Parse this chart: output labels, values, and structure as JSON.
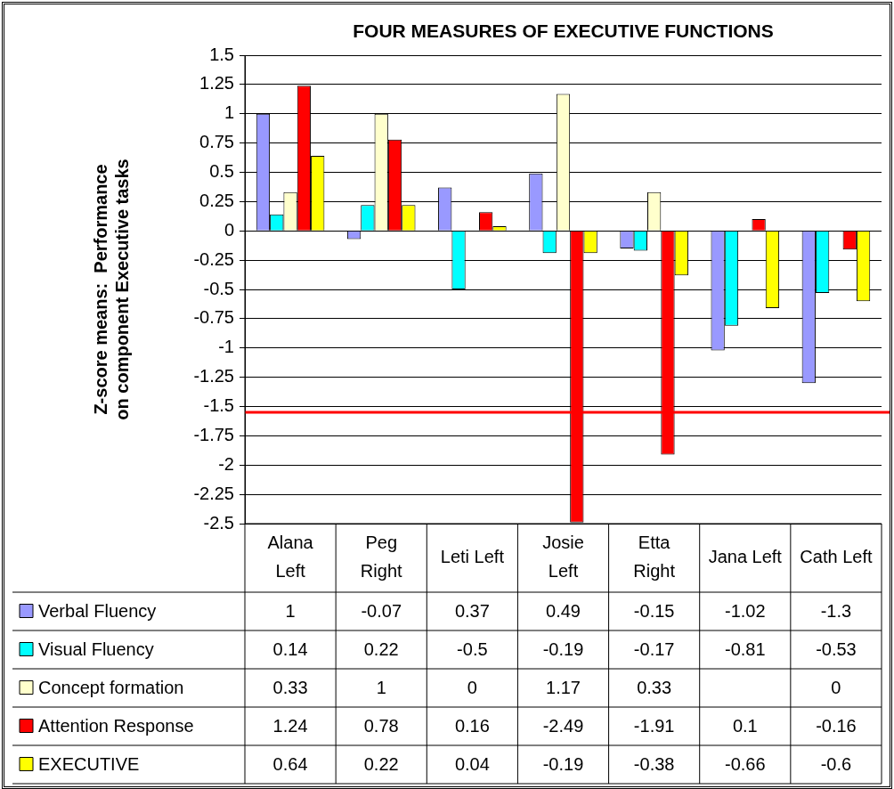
{
  "chart_data": {
    "type": "bar",
    "title": "FOUR MEASURES OF EXECUTIVE FUNCTIONS",
    "ylabel": "Z-score means:  Performance\non component Executive tasks",
    "categories": [
      "Alana Left",
      "Peg Right",
      "Leti Left",
      "Josie Left",
      "Etta Right",
      "Jana Left",
      "Cath Left"
    ],
    "series": [
      {
        "name": "Verbal Fluency",
        "color": "#9999ff",
        "values": [
          1,
          -0.07,
          0.37,
          0.49,
          -0.15,
          -1.02,
          -1.3
        ]
      },
      {
        "name": "Visual Fluency",
        "color": "#00ffff",
        "values": [
          0.14,
          0.22,
          -0.5,
          -0.19,
          -0.17,
          -0.81,
          -0.53
        ]
      },
      {
        "name": "Concept formation",
        "color": "#ffffcc",
        "values": [
          0.33,
          1,
          0,
          1.17,
          0.33,
          null,
          0
        ]
      },
      {
        "name": "Attention Response",
        "color": "#ff0000",
        "values": [
          1.24,
          0.78,
          0.16,
          -2.49,
          -1.91,
          0.1,
          -0.16
        ]
      },
      {
        "name": "EXECUTIVE",
        "color": "#ffff00",
        "values": [
          0.64,
          0.22,
          0.04,
          -0.19,
          -0.38,
          -0.66,
          -0.6
        ]
      }
    ],
    "ylim": [
      -2.5,
      1.5
    ],
    "yticks": [
      1.5,
      1.25,
      1,
      0.75,
      0.5,
      0.25,
      0,
      -0.25,
      -0.5,
      -0.75,
      -1,
      -1.25,
      -1.5,
      -1.75,
      -2,
      -2.25,
      -2.5
    ],
    "grid": "y",
    "legend": "bottom",
    "data_labels": true,
    "ref_lines": [
      {
        "axis": "y",
        "value": -1.55,
        "color": "#ff0000"
      }
    ]
  }
}
